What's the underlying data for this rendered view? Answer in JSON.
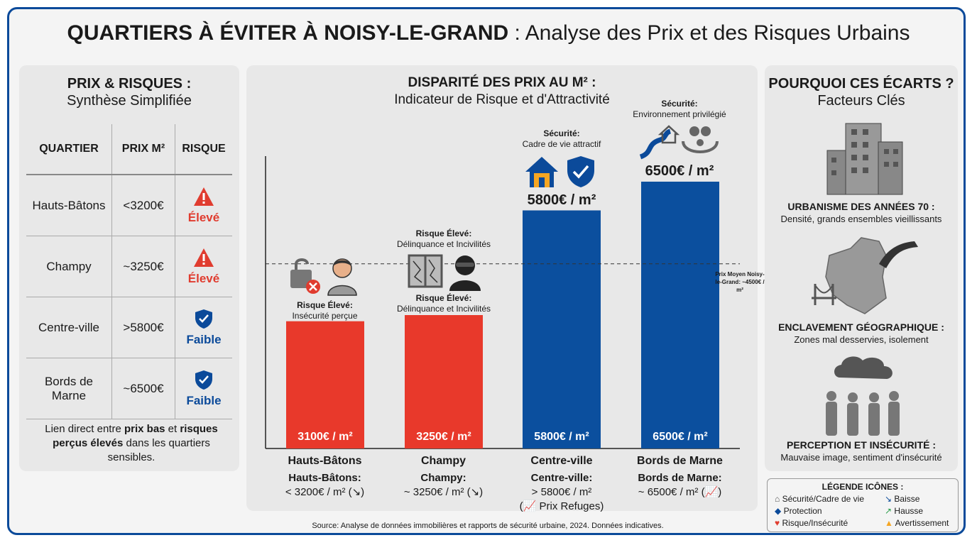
{
  "title": {
    "bold": "QUARTIERS À ÉVITER À NOISY-LE-GRAND",
    "rest": " : Analyse des Prix et des Risques Urbains"
  },
  "left": {
    "title": "PRIX & RISQUES :",
    "subtitle": "Synthèse Simplifiée",
    "headers": [
      "QUARTIER",
      "PRIX M²",
      "RISQUE"
    ],
    "rows": [
      {
        "name": "Hauts-Bâtons",
        "price": "<3200€",
        "risk": "Élevé"
      },
      {
        "name": "Champy",
        "price": "~3250€",
        "risk": "Élevé"
      },
      {
        "name": "Centre-ville",
        "price": ">5800€",
        "risk": "Faible"
      },
      {
        "name": "Bords de Marne",
        "price": "~6500€",
        "risk": "Faible"
      }
    ],
    "note": {
      "a": "Lien direct entre ",
      "b": "prix bas",
      "c": " et ",
      "d": "risques perçus élevés",
      "e": " dans les quartiers sensibles."
    }
  },
  "chart_title": {
    "line1": "DISPARITÉ DES PRIX AU M² :",
    "line2": "Indicateur de Risque et d'Attractivité"
  },
  "chart_data": {
    "type": "bar",
    "categories": [
      "Hauts-Bâtons",
      "Champy",
      "Centre-ville",
      "Bords de Marne"
    ],
    "values": [
      3100,
      3250,
      5800,
      6500
    ],
    "value_labels": [
      "3100€ / m²",
      "3250€ / m²",
      "5800€ / m²",
      "6500€ / m²"
    ],
    "colors": [
      "#e8392b",
      "#e8392b",
      "#0b4f9e",
      "#0b4f9e"
    ],
    "reference_line": {
      "value": 4500,
      "label": "Prix Moyen Noisy-le-Grand: ~4500€ / m²"
    },
    "ylim": [
      0,
      7000
    ]
  },
  "annotations": {
    "hb": {
      "head": "Risque Élevé:",
      "body": "Insécurité perçue"
    },
    "ch_top": {
      "head": "Risque Élevé:",
      "body": "Délinquance et Incivilités"
    },
    "ch_bottom": {
      "head": "Risque Élevé:",
      "body": "Délinquance et Incivilités"
    },
    "cv": {
      "head": "Sécurité:",
      "body": "Cadre de vie attractif",
      "value": "5800€ / m²"
    },
    "bm": {
      "head": "Sécurité:",
      "body": "Environnement privilégié",
      "value": "6500€ / m²"
    }
  },
  "cat_labels": [
    {
      "name": "Hauts-Bâtons",
      "sub": "Hauts-Bâtons:",
      "val": "< 3200€ / m² (↘)",
      "extra": ""
    },
    {
      "name": "Champy",
      "sub": "Champy:",
      "val": "~ 3250€ / m² (↘)",
      "extra": ""
    },
    {
      "name": "Centre-ville",
      "sub": "Centre-ville:",
      "val": "> 5800€ / m²",
      "extra": "(📈 Prix Refuges)"
    },
    {
      "name": "Bords de Marne",
      "sub": "Bords de Marne:",
      "val": "~ 6500€ / m² (📈)",
      "extra": ""
    }
  ],
  "source": "Source: Analyse de données immobilières et rapports de sécurité urbaine, 2024. Données indicatives.",
  "right": {
    "title": "POURQUOI CES ÉCARTS ?",
    "subtitle": "Facteurs Clés",
    "factors": [
      {
        "head": "URBANISME DES ANNÉES 70 :",
        "body": "Densité, grands ensembles vieillissants"
      },
      {
        "head": "ENCLAVEMENT GÉOGRAPHIQUE :",
        "body": "Zones mal desservies, isolement"
      },
      {
        "head": "PERCEPTION ET INSÉCURITÉ :",
        "body": "Mauvaise image, sentiment d'insécurité"
      }
    ]
  },
  "legend": {
    "title": "LÉGENDE ICÔNES :",
    "items": [
      "Sécurité/Cadre de vie",
      "Protection",
      "Risque/Insécurité",
      "Baisse",
      "Hausse",
      "Avertissement"
    ]
  }
}
